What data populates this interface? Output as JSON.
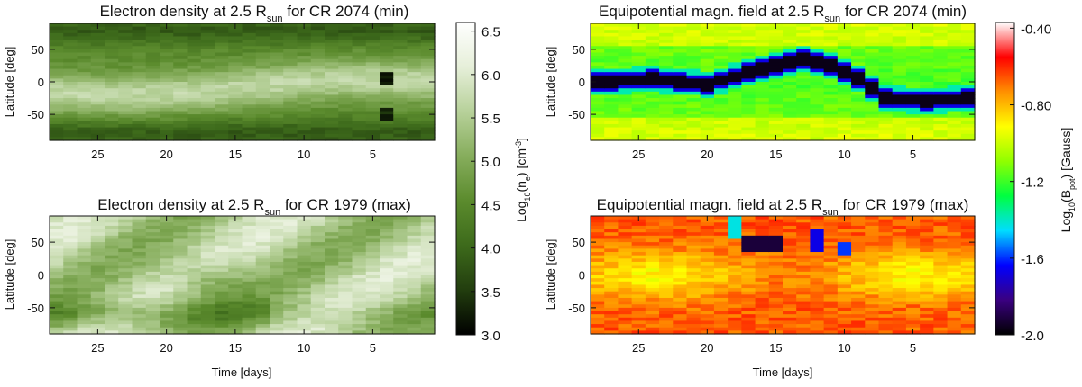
{
  "chart_data": [
    {
      "type": "heatmap",
      "title_main": "Electron density at 2.5 R",
      "title_sub": "sun",
      "title_rest": " for CR 2074 (min)",
      "xlabel": "",
      "ylabel": "Latitude [deg]",
      "xlim": [
        28.5,
        0.5
      ],
      "ylim": [
        -90,
        90
      ],
      "xticks": [
        "25",
        "20",
        "15",
        "10",
        "5"
      ],
      "xtick_values": [
        25,
        20,
        15,
        10,
        5
      ],
      "yticks": [
        "50",
        "0",
        "-50"
      ],
      "ytick_values": [
        50,
        0,
        -50
      ],
      "colormap": "green",
      "structure": [
        {
          "feature": "bright streamer belt",
          "lat_start": 0,
          "lat_end": -30,
          "value": "high"
        },
        {
          "feature": "dark coronal holes",
          "lat": [
            75,
            -75
          ],
          "value": "low"
        }
      ]
    },
    {
      "type": "heatmap",
      "title_main": "Equipotential magn. field at 2.5 R",
      "title_sub": "sun",
      "title_rest": " for CR 2074 (min)",
      "xlabel": "",
      "ylabel": "Latitude [deg]",
      "xlim": [
        28.5,
        0.5
      ],
      "ylim": [
        -90,
        90
      ],
      "xticks": [
        "25",
        "20",
        "15",
        "10",
        "5"
      ],
      "xtick_values": [
        25,
        20,
        15,
        10,
        5
      ],
      "yticks": [
        "50",
        "0",
        "-50"
      ],
      "ytick_values": [
        50,
        0,
        -50
      ],
      "colormap": "rainbow",
      "neutral_line_lat": [
        [
          28,
          0
        ],
        [
          24,
          4
        ],
        [
          20,
          -4
        ],
        [
          16,
          20
        ],
        [
          13,
          35
        ],
        [
          11,
          25
        ],
        [
          9,
          5
        ],
        [
          7,
          -25
        ],
        [
          4,
          -30
        ],
        [
          1,
          -25
        ]
      ]
    },
    {
      "type": "heatmap",
      "title_main": "Electron density at 2.5 R",
      "title_sub": "sun",
      "title_rest": " for CR 1979 (max)",
      "xlabel": "Time [days]",
      "ylabel": "Latitude [deg]",
      "xlim": [
        28.5,
        0.5
      ],
      "ylim": [
        -90,
        90
      ],
      "xticks": [
        "25",
        "20",
        "15",
        "10",
        "5"
      ],
      "xtick_values": [
        25,
        20,
        15,
        10,
        5
      ],
      "yticks": [
        "50",
        "0",
        "-50"
      ],
      "ytick_values": [
        50,
        0,
        -50
      ],
      "colormap": "green",
      "structure": [
        {
          "feature": "bright emission at most latitudes",
          "value": "high"
        }
      ]
    },
    {
      "type": "heatmap",
      "title_main": "Equipotential magn. field at 2.5 R",
      "title_sub": "sun",
      "title_rest": " for CR 1979 (max)",
      "xlabel": "Time [days]",
      "ylabel": "Latitude [deg]",
      "xlim": [
        28.5,
        0.5
      ],
      "ylim": [
        -90,
        90
      ],
      "xticks": [
        "25",
        "20",
        "15",
        "10",
        "5"
      ],
      "xtick_values": [
        25,
        20,
        15,
        10,
        5
      ],
      "yticks": [
        "50",
        "0",
        "-50"
      ],
      "ytick_values": [
        50,
        0,
        -50
      ],
      "colormap": "rainbow",
      "weak_field_patch": {
        "days": [
          17,
          15
        ],
        "lat": [
          60,
          40
        ]
      }
    }
  ],
  "colorbars": [
    {
      "label_main": "Log",
      "label_sub": "10",
      "label_rest": "(n",
      "label_sub2": "e",
      "label_end": ") [cm",
      "label_sup": "-3",
      "label_close": "]",
      "range": [
        3.0,
        6.6
      ],
      "ticks": [
        "6.5",
        "6.0",
        "5.5",
        "5.0",
        "4.5",
        "4.0",
        "3.5",
        "3.0"
      ],
      "tick_values": [
        6.5,
        6.0,
        5.5,
        5.0,
        4.5,
        4.0,
        3.5,
        3.0
      ],
      "colors": [
        "#000000",
        "#223d0e",
        "#3d6a1b",
        "#5b8b2d",
        "#86ad5c",
        "#b7d19a",
        "#e6efd9",
        "#ffffff"
      ]
    },
    {
      "label_main": "Log",
      "label_sub": "10",
      "label_rest": "(B",
      "label_sub2": "pot",
      "label_end": ") [Gauss]",
      "range": [
        -2.0,
        -0.37
      ],
      "ticks": [
        "-0.40",
        "-0.80",
        "-1.2",
        "-1.6",
        "-2.0"
      ],
      "tick_values": [
        -0.4,
        -0.8,
        -1.2,
        -1.6,
        -2.0
      ],
      "colors": [
        "#000000",
        "#3a0080",
        "#0000ff",
        "#00ddff",
        "#00ff40",
        "#90ff00",
        "#ffff00",
        "#ff9000",
        "#ff0000",
        "#ffffff"
      ]
    }
  ],
  "colors": {
    "axis": "#111111",
    "background": "#ffffff"
  }
}
